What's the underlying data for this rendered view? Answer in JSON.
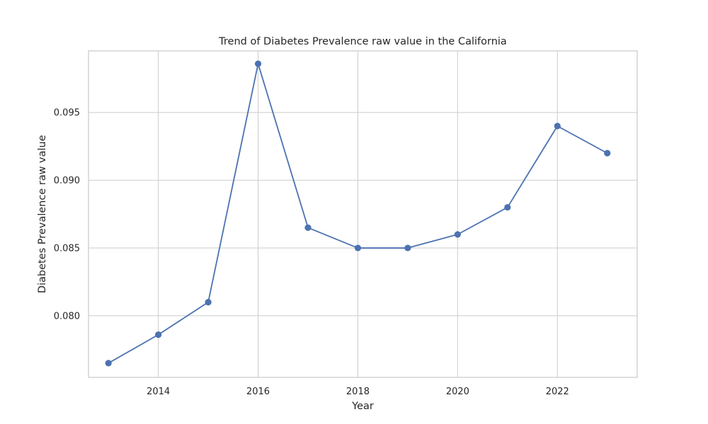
{
  "chart_data": {
    "type": "line",
    "title": "Trend of Diabetes Prevalence raw value in the California",
    "xlabel": "Year",
    "ylabel": "Diabetes Prevalence raw value",
    "xlim": [
      2012.6,
      2023.6
    ],
    "ylim": [
      0.07545,
      0.09955
    ],
    "x_ticks": [
      2014,
      2016,
      2018,
      2020,
      2022
    ],
    "y_ticks": [
      0.08,
      0.085,
      0.09,
      0.095
    ],
    "y_tick_labels": [
      "0.080",
      "0.085",
      "0.090",
      "0.095"
    ],
    "grid": true,
    "series": [
      {
        "color": "#4c72b0",
        "x": [
          2013,
          2014,
          2015,
          2016,
          2017,
          2018,
          2019,
          2020,
          2021,
          2022,
          2023
        ],
        "values": [
          0.0765,
          0.0786,
          0.081,
          0.0986,
          0.0865,
          0.085,
          0.085,
          0.086,
          0.088,
          0.094,
          0.092
        ]
      }
    ]
  }
}
